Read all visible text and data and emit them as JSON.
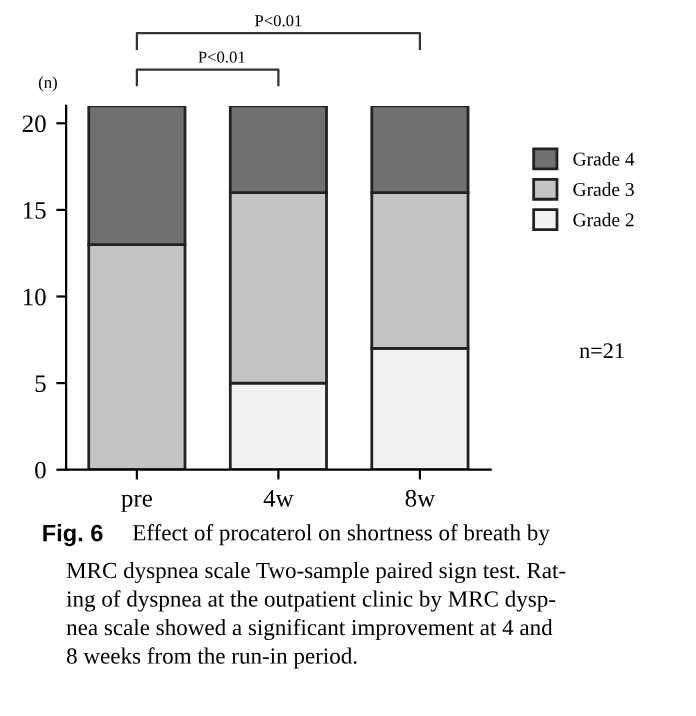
{
  "chart_data": {
    "type": "bar",
    "stacked": true,
    "ylabel": "(n)",
    "categories": [
      "pre",
      "4w",
      "8w"
    ],
    "series": [
      {
        "name": "Grade 2",
        "color": "#f2f2f2",
        "values": [
          0,
          5,
          7
        ]
      },
      {
        "name": "Grade 3",
        "color": "#c4c4c4",
        "values": [
          13,
          11,
          9
        ]
      },
      {
        "name": "Grade 4",
        "color": "#707070",
        "values": [
          8,
          5,
          5
        ]
      }
    ],
    "ylim": [
      0,
      21
    ],
    "yticks": [
      0,
      5,
      10,
      15,
      20
    ],
    "grid": false,
    "legend": "right",
    "annotations": [
      "P<0.01",
      "P<0.01",
      "n=21",
      "Fig. 6",
      "Effect of procaterol on shortness of breath by\nMRC dyspnea scale Two-sample paired sign test. Rat-\ning of dyspnea at the outpatient clinic by MRC dysp-\nnea scale showed a significant improvement at 4 and\n8 weeks from the run-in period."
    ]
  }
}
